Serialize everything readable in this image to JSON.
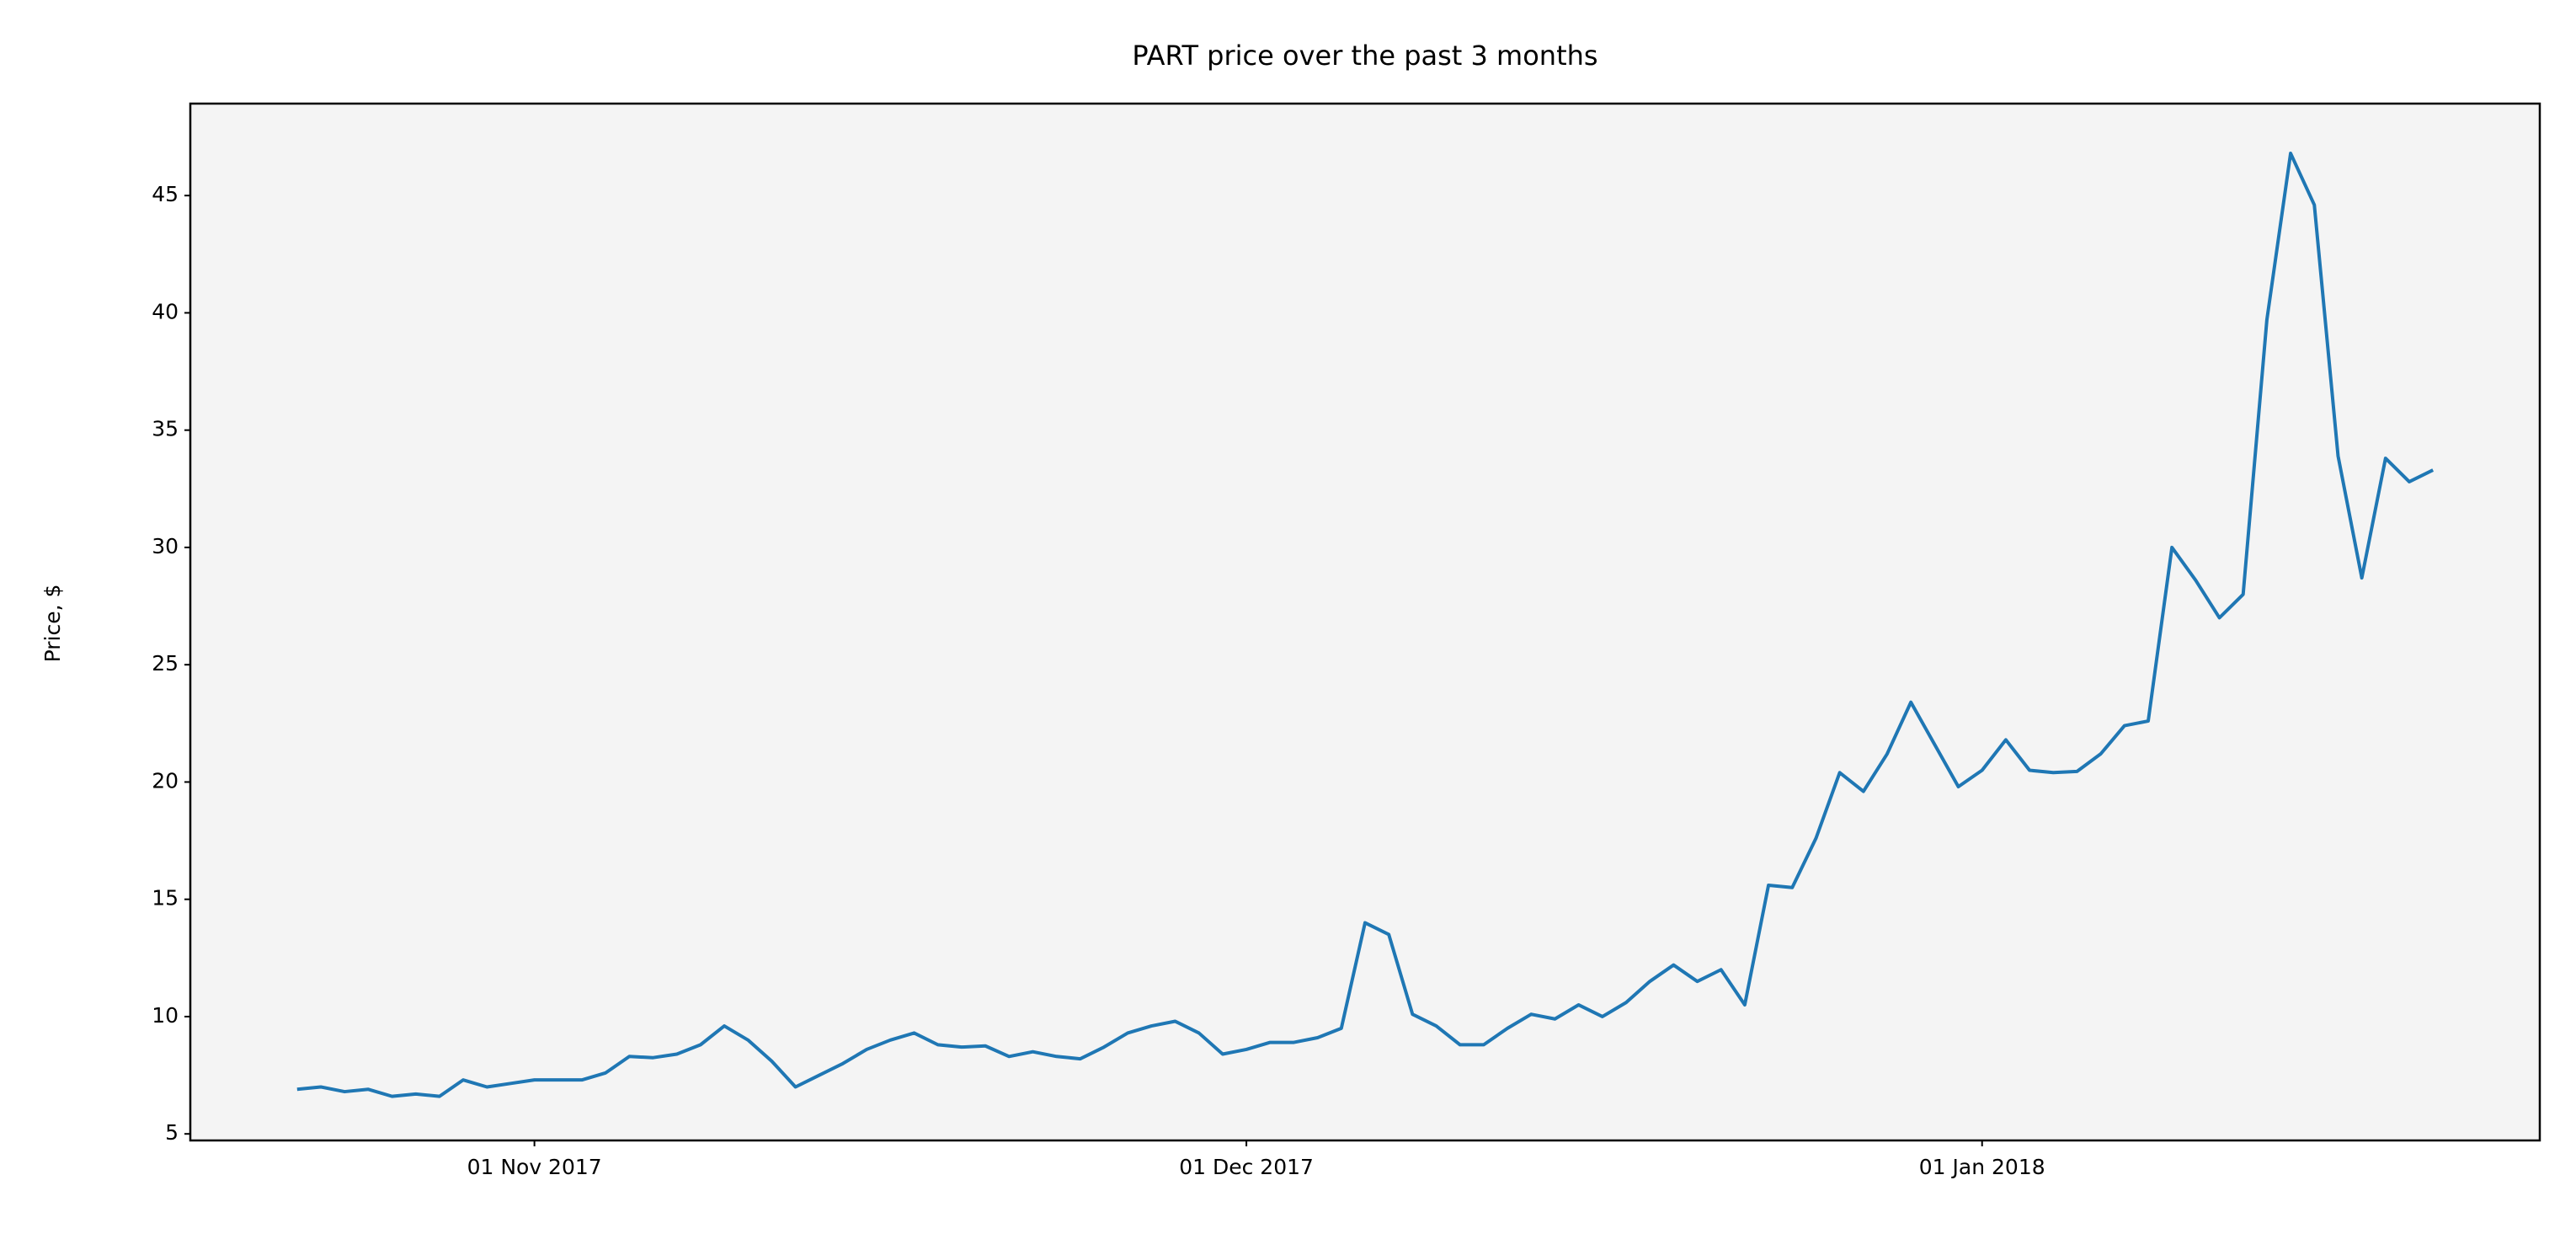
{
  "chart_data": {
    "type": "line",
    "title": "PART price over the past 3 months",
    "ylabel": "Price, $",
    "x": [
      "2017-10-22",
      "2017-10-23",
      "2017-10-24",
      "2017-10-25",
      "2017-10-26",
      "2017-10-27",
      "2017-10-28",
      "2017-10-29",
      "2017-10-30",
      "2017-10-31",
      "2017-11-01",
      "2017-11-02",
      "2017-11-03",
      "2017-11-04",
      "2017-11-05",
      "2017-11-06",
      "2017-11-07",
      "2017-11-08",
      "2017-11-09",
      "2017-11-10",
      "2017-11-11",
      "2017-11-12",
      "2017-11-13",
      "2017-11-14",
      "2017-11-15",
      "2017-11-16",
      "2017-11-17",
      "2017-11-18",
      "2017-11-19",
      "2017-11-20",
      "2017-11-21",
      "2017-11-22",
      "2017-11-23",
      "2017-11-24",
      "2017-11-25",
      "2017-11-26",
      "2017-11-27",
      "2017-11-28",
      "2017-11-29",
      "2017-11-30",
      "2017-12-01",
      "2017-12-02",
      "2017-12-03",
      "2017-12-04",
      "2017-12-05",
      "2017-12-06",
      "2017-12-07",
      "2017-12-08",
      "2017-12-09",
      "2017-12-10",
      "2017-12-11",
      "2017-12-12",
      "2017-12-13",
      "2017-12-14",
      "2017-12-15",
      "2017-12-16",
      "2017-12-17",
      "2017-12-18",
      "2017-12-19",
      "2017-12-20",
      "2017-12-21",
      "2017-12-22",
      "2017-12-23",
      "2017-12-24",
      "2017-12-25",
      "2017-12-26",
      "2017-12-27",
      "2017-12-28",
      "2017-12-29",
      "2017-12-30",
      "2017-12-31",
      "2018-01-01",
      "2018-01-02",
      "2018-01-03",
      "2018-01-04",
      "2018-01-05",
      "2018-01-06",
      "2018-01-07",
      "2018-01-08",
      "2018-01-09",
      "2018-01-10",
      "2018-01-11",
      "2018-01-12",
      "2018-01-13",
      "2018-01-14",
      "2018-01-15",
      "2018-01-16",
      "2018-01-17",
      "2018-01-18",
      "2018-01-19",
      "2018-01-20"
    ],
    "values": [
      6.9,
      7.0,
      6.8,
      6.9,
      6.6,
      6.7,
      6.6,
      7.3,
      7.0,
      7.15,
      7.3,
      7.3,
      7.3,
      7.6,
      8.3,
      8.25,
      8.4,
      8.8,
      9.6,
      9.0,
      8.1,
      7.0,
      7.5,
      8.0,
      8.6,
      9.0,
      9.3,
      8.8,
      8.7,
      8.75,
      8.3,
      8.5,
      8.3,
      8.2,
      8.7,
      9.3,
      9.6,
      9.8,
      9.3,
      8.4,
      8.6,
      8.9,
      8.9,
      9.1,
      9.5,
      14.0,
      13.5,
      10.1,
      9.6,
      8.8,
      8.8,
      9.5,
      10.1,
      9.9,
      10.5,
      10.0,
      10.6,
      11.5,
      12.2,
      11.5,
      12.0,
      10.5,
      15.6,
      15.5,
      17.6,
      20.4,
      19.6,
      21.2,
      23.4,
      21.6,
      19.8,
      20.5,
      21.8,
      20.5,
      20.4,
      20.45,
      21.2,
      22.4,
      22.6,
      30.0,
      28.6,
      27.0,
      28.0,
      39.7,
      46.8,
      44.6,
      33.9,
      28.7,
      33.8,
      32.8,
      33.3
    ],
    "color": "#1f77b4",
    "xlim": [
      "2017-10-17T12:00Z",
      "2018-01-24T12:00Z"
    ],
    "xticks": [
      {
        "value": "2017-11-01",
        "label": "01 Nov 2017"
      },
      {
        "value": "2017-12-01",
        "label": "01 Dec 2017"
      },
      {
        "value": "2018-01-01",
        "label": "01 Jan 2018"
      }
    ],
    "ylim": [
      4.72,
      48.92
    ],
    "yticks": [
      5,
      10,
      15,
      20,
      25,
      30,
      35,
      40,
      45
    ],
    "grid": false
  }
}
